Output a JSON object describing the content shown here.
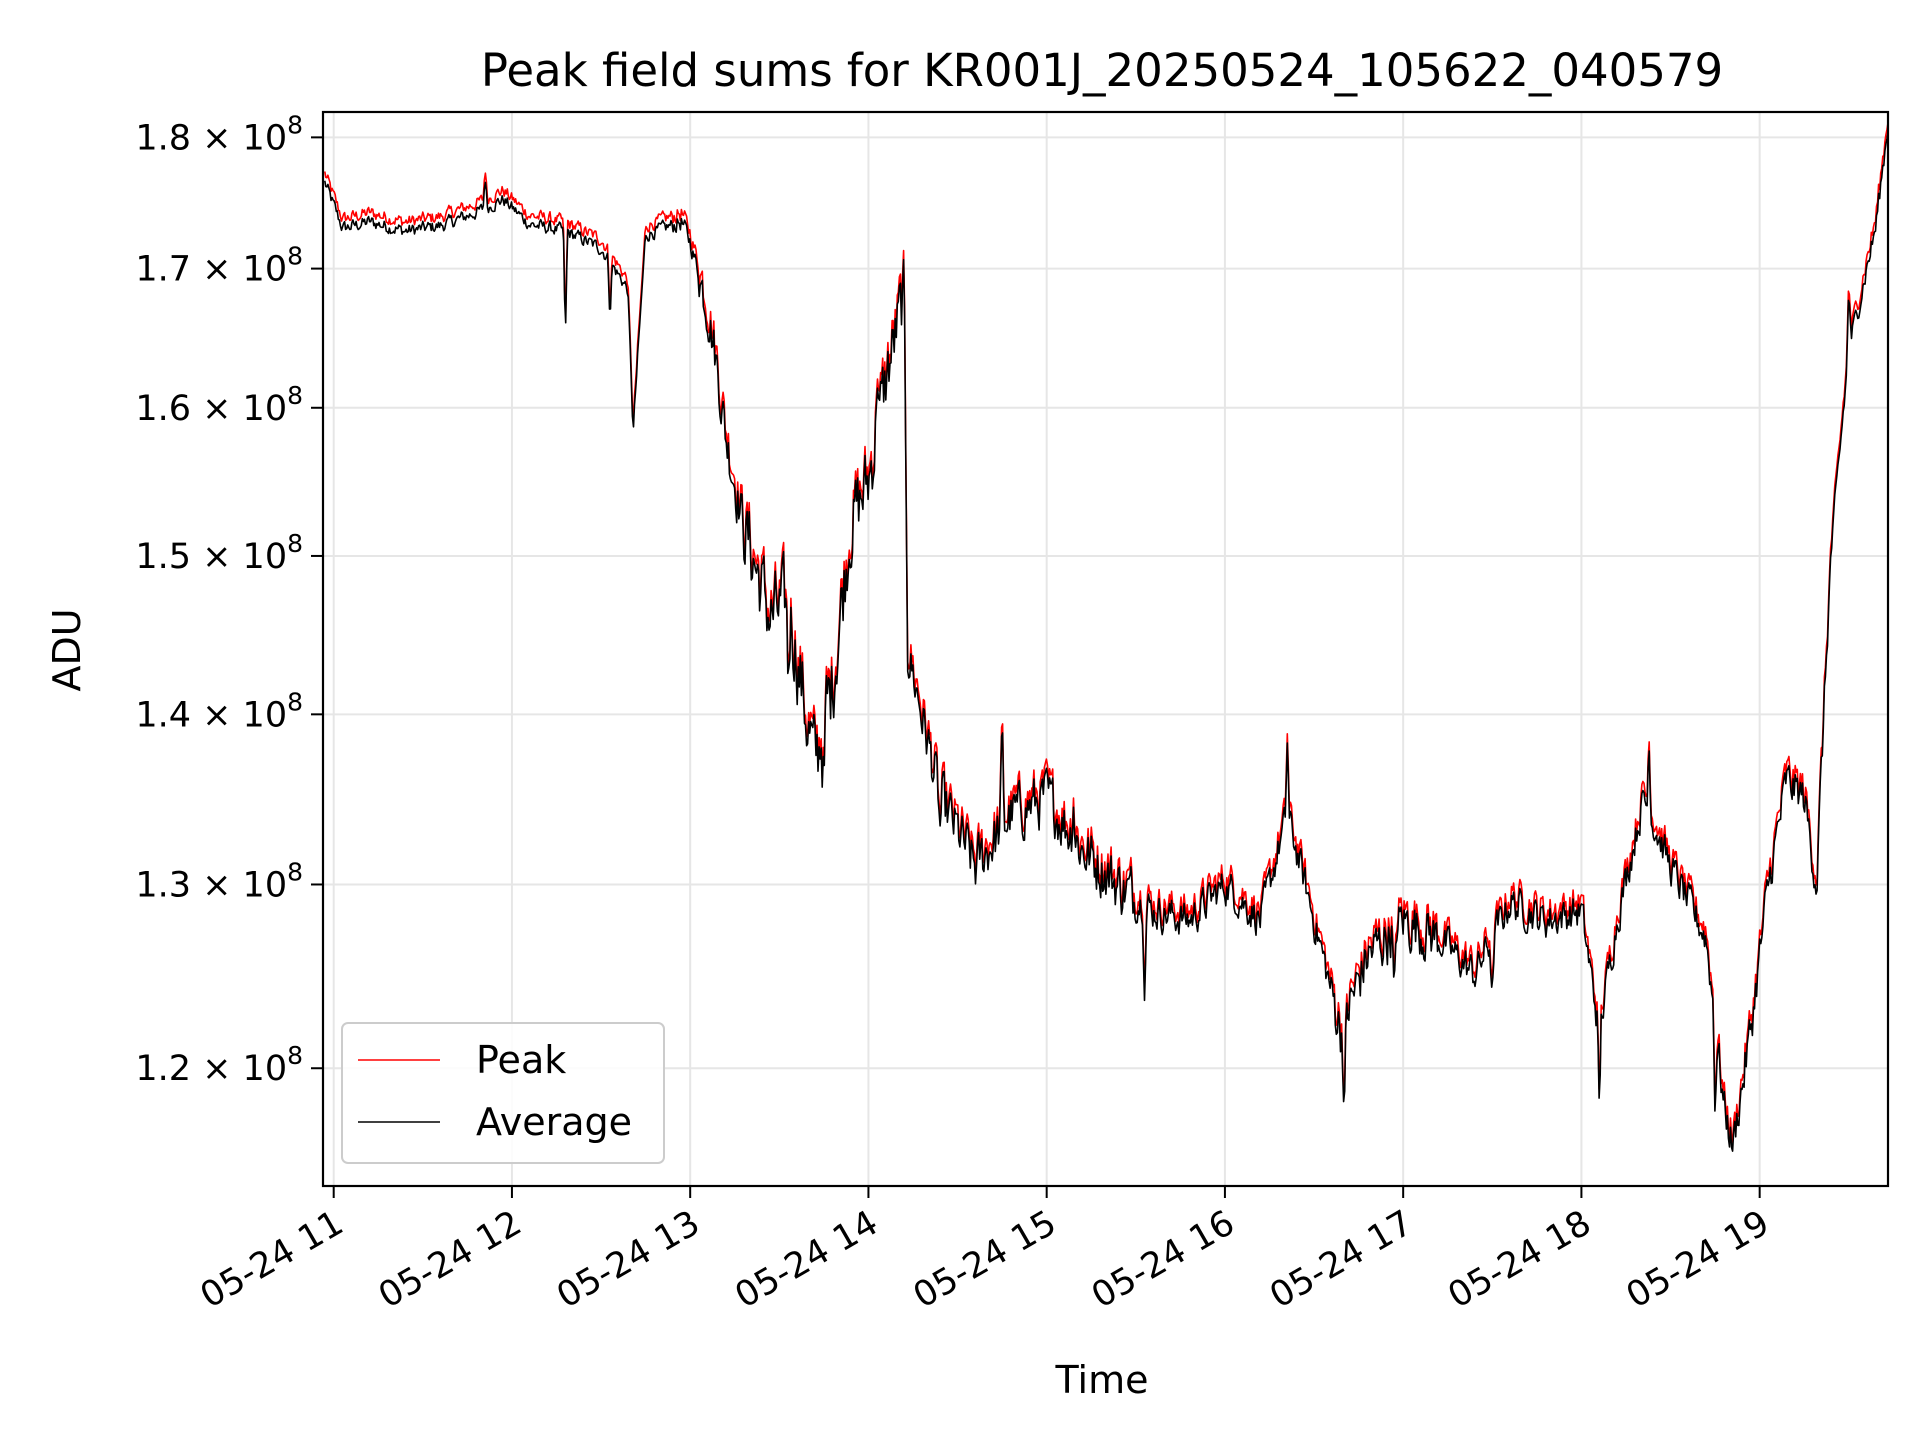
{
  "chart_data": {
    "type": "line",
    "title": "Peak field sums for KR001J_20250524_105622_040579",
    "xlabel": "Time",
    "ylabel": "ADU",
    "x_ticks": [
      "05-24 11",
      "05-24 12",
      "05-24 13",
      "05-24 14",
      "05-24 15",
      "05-24 16",
      "05-24 17",
      "05-24 18",
      "05-24 19"
    ],
    "x_tick_hours": [
      11,
      12,
      13,
      14,
      15,
      16,
      17,
      18,
      19
    ],
    "xlim_hours": [
      10.94,
      19.72
    ],
    "y_scale": "log",
    "ylim": [
      114000000,
      182000000
    ],
    "y_ticks": [
      {
        "value": 120000000,
        "label": "1.2 × 10",
        "exp": "8"
      },
      {
        "value": 130000000,
        "label": "1.3 × 10",
        "exp": "8"
      },
      {
        "value": 140000000,
        "label": "1.4 × 10",
        "exp": "8"
      },
      {
        "value": 150000000,
        "label": "1.5 × 10",
        "exp": "8"
      },
      {
        "value": 160000000,
        "label": "1.6 × 10",
        "exp": "8"
      },
      {
        "value": 170000000,
        "label": "1.7 × 10",
        "exp": "8"
      },
      {
        "value": 180000000,
        "label": "1.8 × 10",
        "exp": "8"
      }
    ],
    "grid": true,
    "legend_position": "lower-left",
    "series": [
      {
        "name": "Peak",
        "color": "#ff0000",
        "offset_ratio": 1.004
      },
      {
        "name": "Average",
        "color": "#000000",
        "offset_ratio": 1.0
      }
    ],
    "average_anchors": [
      [
        10.95,
        176.5
      ],
      [
        11.05,
        173.0
      ],
      [
        11.2,
        173.5
      ],
      [
        11.4,
        172.8
      ],
      [
        11.6,
        173.2
      ],
      [
        11.8,
        174.2
      ],
      [
        11.95,
        175.2
      ],
      [
        12.1,
        173.3
      ],
      [
        12.3,
        172.8
      ],
      [
        12.5,
        171.5
      ],
      [
        12.65,
        168.5
      ],
      [
        12.68,
        158.3
      ],
      [
        12.75,
        172.5
      ],
      [
        12.95,
        173.5
      ],
      [
        13.0,
        172.0
      ],
      [
        13.1,
        167.0
      ],
      [
        13.15,
        163.0
      ],
      [
        13.2,
        158.0
      ],
      [
        13.3,
        152.0
      ],
      [
        13.35,
        150.0
      ],
      [
        13.45,
        146.0
      ],
      [
        13.55,
        147.0
      ],
      [
        13.65,
        140.0
      ],
      [
        13.7,
        137.0
      ],
      [
        13.8,
        142.0
      ],
      [
        13.9,
        152.0
      ],
      [
        14.0,
        155.0
      ],
      [
        14.1,
        162.0
      ],
      [
        14.2,
        168.0
      ],
      [
        14.22,
        144.0
      ],
      [
        14.3,
        140.0
      ],
      [
        14.4,
        135.0
      ],
      [
        14.6,
        131.0
      ],
      [
        14.8,
        134.0
      ],
      [
        15.0,
        135.0
      ],
      [
        15.2,
        132.0
      ],
      [
        15.4,
        130.0
      ],
      [
        15.6,
        128.5
      ],
      [
        15.8,
        128.0
      ],
      [
        16.0,
        130.0
      ],
      [
        16.2,
        128.0
      ],
      [
        16.35,
        134.0
      ],
      [
        16.5,
        128.0
      ],
      [
        16.65,
        122.0
      ],
      [
        16.8,
        126.0
      ],
      [
        17.0,
        128.0
      ],
      [
        17.2,
        127.0
      ],
      [
        17.4,
        125.0
      ],
      [
        17.6,
        129.0
      ],
      [
        17.8,
        128.0
      ],
      [
        18.0,
        128.5
      ],
      [
        18.1,
        122.0
      ],
      [
        18.2,
        128.0
      ],
      [
        18.35,
        135.0
      ],
      [
        18.5,
        131.0
      ],
      [
        18.7,
        127.0
      ],
      [
        18.8,
        118.0
      ],
      [
        18.85,
        116.0
      ],
      [
        18.95,
        122.0
      ],
      [
        19.05,
        130.0
      ],
      [
        19.15,
        136.0
      ],
      [
        19.25,
        135.0
      ],
      [
        19.32,
        130.0
      ],
      [
        19.4,
        150.0
      ],
      [
        19.5,
        164.0
      ],
      [
        19.55,
        167.0
      ],
      [
        19.65,
        173.0
      ],
      [
        19.72,
        181.0
      ]
    ],
    "noise_amplitude_by_hour": [
      [
        10.9,
        0.5
      ],
      [
        12.9,
        0.7
      ],
      [
        13.05,
        1.8
      ],
      [
        13.3,
        2.6
      ],
      [
        14.2,
        1.6
      ],
      [
        15.5,
        1.0
      ],
      [
        16.6,
        1.5
      ],
      [
        17.2,
        1.0
      ],
      [
        18.9,
        1.2
      ],
      [
        19.4,
        0.8
      ]
    ],
    "spikes": [
      [
        11.85,
        2.5
      ],
      [
        12.3,
        -8.0
      ],
      [
        12.55,
        -4.0
      ],
      [
        13.55,
        -5.0
      ],
      [
        13.75,
        -4.0
      ],
      [
        14.05,
        5.0
      ],
      [
        14.4,
        -2.0
      ],
      [
        14.75,
        5.5
      ],
      [
        15.15,
        2.5
      ],
      [
        15.55,
        -4.5
      ],
      [
        16.35,
        4.5
      ],
      [
        16.67,
        -5.5
      ],
      [
        16.95,
        -5.0
      ],
      [
        17.5,
        -4.0
      ],
      [
        18.1,
        -4.5
      ],
      [
        18.38,
        4.5
      ],
      [
        18.75,
        -4.5
      ],
      [
        19.5,
        5.0
      ]
    ]
  }
}
